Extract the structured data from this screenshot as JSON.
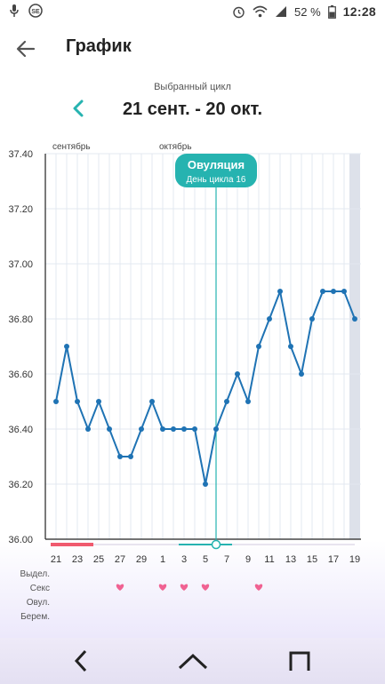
{
  "status": {
    "battery": "52 %",
    "time": "12:28"
  },
  "header": {
    "title": "График",
    "back_icon": "arrow-left-icon"
  },
  "cycle": {
    "caption": "Выбранный цикл",
    "range": "21 сент. - 20 окт.",
    "prev_icon": "chevron-left-icon"
  },
  "ovulation": {
    "title": "Овуляция",
    "subtitle": "День цикла 16"
  },
  "colors": {
    "line": "#1f73b4",
    "accent": "#26b3b0",
    "period": "#f05a6e",
    "heart": "#f06292",
    "grid": "#e3e8f0"
  },
  "chart_data": {
    "type": "line",
    "month_labels": [
      "сентябрь",
      "октябрь"
    ],
    "ylim": [
      36.0,
      37.4
    ],
    "yticks": [
      "37.40",
      "37.20",
      "37.00",
      "36.80",
      "36.60",
      "36.40",
      "36.20",
      "36.00"
    ],
    "xticks": [
      "21",
      "23",
      "25",
      "27",
      "29",
      "1",
      "3",
      "5",
      "7",
      "9",
      "11",
      "13",
      "15",
      "17",
      "19"
    ],
    "x": [
      "21 сент.",
      "22 сент.",
      "23 сент.",
      "24 сент.",
      "25 сент.",
      "26 сент.",
      "27 сент.",
      "28 сент.",
      "29 сент.",
      "30 сент.",
      "1 окт.",
      "2 окт.",
      "3 окт.",
      "4 окт.",
      "5 окт.",
      "6 окт.",
      "7 окт.",
      "8 окт.",
      "9 окт.",
      "10 окт.",
      "11 окт.",
      "12 окт.",
      "13 окт.",
      "14 окт.",
      "15 окт.",
      "16 окт.",
      "17 окт.",
      "18 окт.",
      "19 окт."
    ],
    "series": [
      {
        "values": [
          36.5,
          36.7,
          36.5,
          36.4,
          36.5,
          36.4,
          36.3,
          36.3,
          36.4,
          36.5,
          36.4,
          36.4,
          36.4,
          36.4,
          36.2,
          36.4,
          36.5,
          36.6,
          36.5,
          36.7,
          36.8,
          36.9,
          36.7,
          36.6,
          36.8,
          36.9,
          36.9,
          36.9,
          36.8
        ]
      }
    ],
    "period_days": 4,
    "fertile_window": [
      13,
      17
    ],
    "ovulation_day": 16,
    "sex_days": [
      "27",
      "1",
      "3",
      "5",
      "10"
    ],
    "row_labels": [
      "Выдел.",
      "Секс",
      "Овул.",
      "Берем."
    ]
  },
  "nav": {
    "back": "back-icon",
    "home": "home-icon",
    "recents": "recents-icon"
  }
}
